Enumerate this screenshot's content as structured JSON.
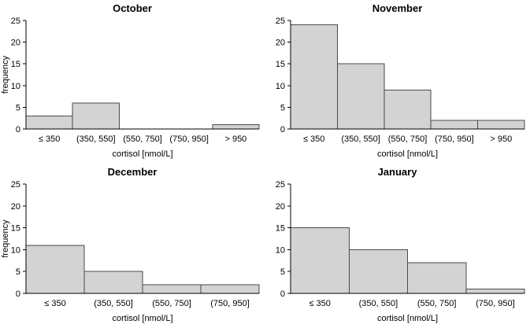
{
  "page": {
    "background": "#ffffff"
  },
  "colors": {
    "bar_fill": "#d3d3d3",
    "bar_stroke": "#4a4a4a",
    "axis": "#000000",
    "text": "#000000"
  },
  "chart_data": [
    {
      "type": "bar",
      "title": "October",
      "categories": [
        "≤ 350",
        "(350, 550]",
        "(550, 750]",
        "(750, 950]",
        "> 950"
      ],
      "values": [
        3,
        6,
        0,
        0,
        1
      ],
      "xlabel": "cortisol [nmol/L]",
      "ylabel": "frequency",
      "ylim": [
        0,
        25
      ],
      "yticks": [
        0,
        5,
        10,
        15,
        20,
        25
      ],
      "grid": false,
      "legend": null
    },
    {
      "type": "bar",
      "title": "November",
      "categories": [
        "≤ 350",
        "(350, 550]",
        "(550, 750]",
        "(750, 950]",
        "> 950"
      ],
      "values": [
        24,
        15,
        9,
        2,
        2
      ],
      "xlabel": "cortisol [nmol/L]",
      "ylabel": "",
      "ylim": [
        0,
        25
      ],
      "yticks": [
        0,
        5,
        10,
        15,
        20,
        25
      ],
      "grid": false,
      "legend": null
    },
    {
      "type": "bar",
      "title": "December",
      "categories": [
        "≤ 350",
        "(350, 550]",
        "(550, 750]",
        "(750, 950]"
      ],
      "values": [
        11,
        5,
        2,
        2
      ],
      "xlabel": "cortisol [nmol/L]",
      "ylabel": "frequency",
      "ylim": [
        0,
        25
      ],
      "yticks": [
        0,
        5,
        10,
        15,
        20,
        25
      ],
      "grid": false,
      "legend": null
    },
    {
      "type": "bar",
      "title": "January",
      "categories": [
        "≤ 350",
        "(350, 550]",
        "(550, 750]",
        "(750, 950]"
      ],
      "values": [
        15,
        10,
        7,
        1
      ],
      "xlabel": "cortisol [nmol/L]",
      "ylabel": "",
      "ylim": [
        0,
        25
      ],
      "yticks": [
        0,
        5,
        10,
        15,
        20,
        25
      ],
      "grid": false,
      "legend": null
    }
  ]
}
